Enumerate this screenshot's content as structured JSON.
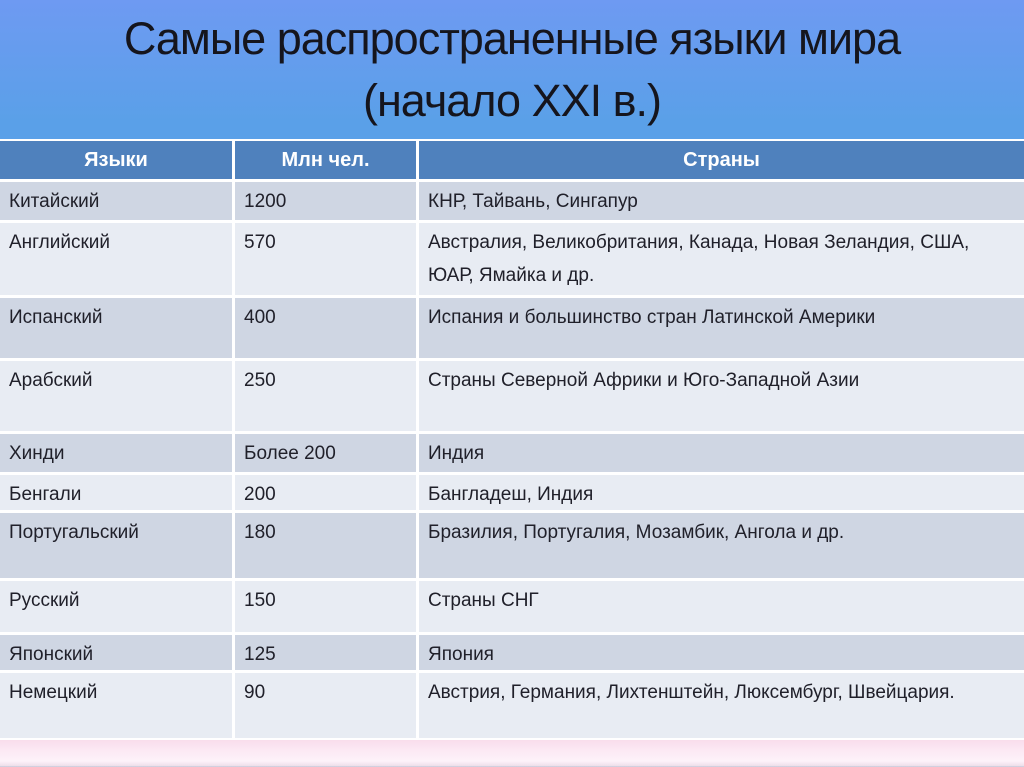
{
  "slide": {
    "title": "Самые распространенные языки мира (начало XXI в.)"
  },
  "table": {
    "columns": [
      "Языки",
      "Млн чел.",
      "Страны"
    ],
    "rows": [
      {
        "language": "Китайский",
        "speakers_mln": "1200",
        "countries": "КНР, Тайвань, Сингапур"
      },
      {
        "language": "Английский",
        "speakers_mln": "570",
        "countries": "Австралия, Великобритания, Канада, Новая Зеландия, США, ЮАР, Ямайка и др."
      },
      {
        "language": "Испанский",
        "speakers_mln": "400",
        "countries": "Испания и большинство стран Латинской Америки"
      },
      {
        "language": "Арабский",
        "speakers_mln": "250",
        "countries": "Страны Северной Африки и Юго-Западной Азии"
      },
      {
        "language": "Хинди",
        "speakers_mln": "Более 200",
        "countries": "Индия"
      },
      {
        "language": "Бенгали",
        "speakers_mln": "200",
        "countries": "Бангладеш, Индия"
      },
      {
        "language": "Португальский",
        "speakers_mln": "180",
        "countries": "Бразилия, Португалия, Мозамбик, Ангола и др."
      },
      {
        "language": "Русский",
        "speakers_mln": "150",
        "countries": "Страны СНГ"
      },
      {
        "language": "Японский",
        "speakers_mln": "125",
        "countries": "Япония"
      },
      {
        "language": "Немецкий",
        "speakers_mln": "90",
        "countries": "Австрия, Германия, Лихтенштейн, Люксембург, Швейцария."
      }
    ]
  },
  "colors": {
    "header_bg": "#4f81bd",
    "row_dark": "#cfd6e3",
    "row_light": "#e8ecf3",
    "body_text": "#20202a",
    "title_color": "#15151d",
    "background_blue_top": "#6e9af2",
    "background_blue": "#55a1e6",
    "footer_pink": "#fce9f4"
  }
}
